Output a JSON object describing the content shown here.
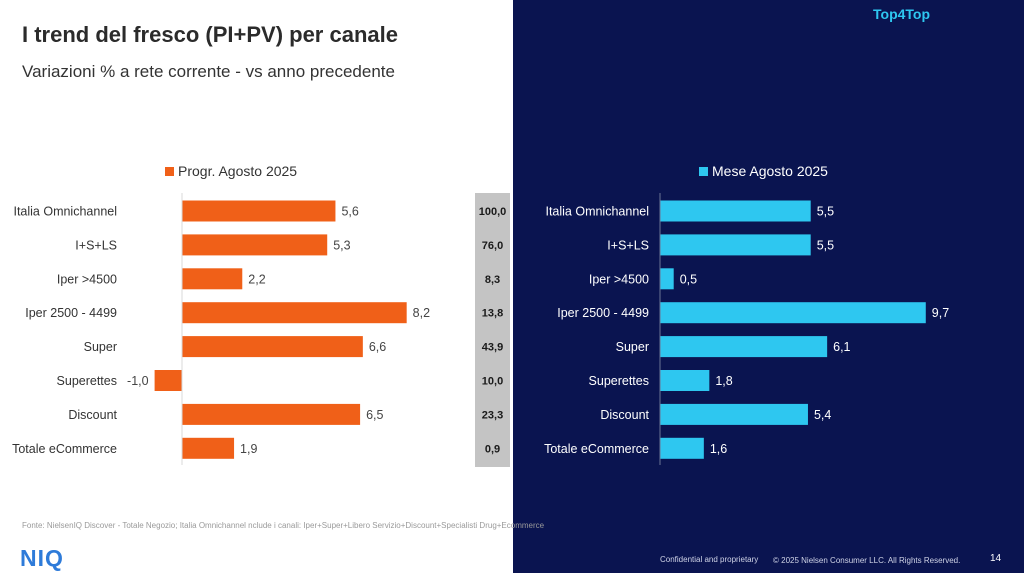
{
  "header": {
    "title": "I trend del fresco (PI+PV) per canale",
    "subtitle": "Variazioni % a rete corrente - vs anno precedente",
    "brand_tag": "Top4Top"
  },
  "chart_data": [
    {
      "type": "bar",
      "orientation": "horizontal",
      "categories": [
        "Italia Omnichannel",
        "I+S+LS",
        "Iper >4500",
        "Iper 2500 - 4499",
        "Super",
        "Superettes",
        "Discount",
        "Totale eCommerce"
      ],
      "series": [
        {
          "name": "Progr. Agosto 2025",
          "values": [
            5.6,
            5.3,
            2.2,
            8.2,
            6.6,
            -1.0,
            6.5,
            1.9
          ],
          "labels": [
            "5,6",
            "5,3",
            "2,2",
            "8,2",
            "6,6",
            "-1,0",
            "6,5",
            "1,9"
          ],
          "color": "#f06018"
        }
      ],
      "xlim": [
        -1.0,
        8.2
      ],
      "legend": "top",
      "grid": false
    },
    {
      "type": "bar",
      "orientation": "horizontal",
      "categories": [
        "Italia Omnichannel",
        "I+S+LS",
        "Iper >4500",
        "Iper 2500 - 4499",
        "Super",
        "Superettes",
        "Discount",
        "Totale eCommerce"
      ],
      "series": [
        {
          "name": "Mese Agosto 2025",
          "values": [
            5.5,
            5.5,
            0.5,
            9.7,
            6.1,
            1.8,
            5.4,
            1.6
          ],
          "labels": [
            "5,5",
            "5,5",
            "0,5",
            "9,7",
            "6,1",
            "1,8",
            "5,4",
            "1,6"
          ],
          "color": "#2ec7f0"
        }
      ],
      "xlim": [
        0,
        9.7
      ],
      "legend": "top",
      "grid": false
    }
  ],
  "share_column": {
    "values": [
      "100,0",
      "76,0",
      "8,3",
      "13,8",
      "43,9",
      "10,0",
      "23,3",
      "0,9"
    ]
  },
  "footer": {
    "source": "Fonte: NielsenIQ Discover - Totale Negozio; Italia Omnichannel nclude i canali: Iper+Super+Libero Servizio+Discount+Specialisti Drug+Ecommerce",
    "logo": "NIQ",
    "confidential": "Confidential and proprietary",
    "copyright": "© 2025 Nielsen Consumer LLC. All Rights Reserved.",
    "page_number": "14"
  },
  "colors": {
    "right_background": "#0a1450",
    "left_series": "#f06018",
    "right_series": "#2ec7f0",
    "share_column": "#c4c4c4"
  }
}
